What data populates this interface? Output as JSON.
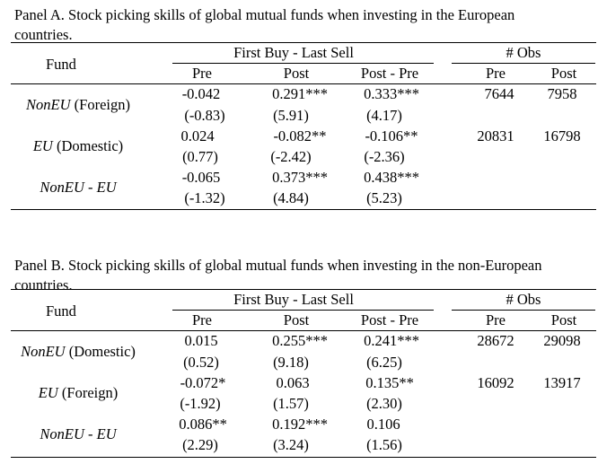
{
  "panels": [
    {
      "title": "Panel A. Stock picking skills of global mutual funds when investing in the European countries.",
      "headers": {
        "fund": "Fund",
        "group1": "First Buy - Last Sell",
        "group2": "# Obs",
        "pre": "Pre",
        "post": "Post",
        "post_pre": "Post - Pre",
        "obs_pre": "Pre",
        "obs_post": "Post"
      },
      "rows": [
        {
          "label_italic": "NonEU",
          "label_rest": " (Foreign)",
          "pre": "-0.042",
          "post": "0.291***",
          "diff": "0.333***",
          "pre_t": "(-0.83)",
          "post_t": "(5.91)",
          "diff_t": "(4.17)",
          "obs_pre": "7644",
          "obs_post": "7958"
        },
        {
          "label_italic": "EU",
          "label_rest": " (Domestic)",
          "pre": "0.024",
          "post": "-0.082**",
          "diff": "-0.106**",
          "pre_t": "(0.77)",
          "post_t": "(-2.42)",
          "diff_t": "(-2.36)",
          "obs_pre": "20831",
          "obs_post": "16798"
        },
        {
          "label_italic": "NonEU - EU",
          "label_rest": "",
          "pre": "-0.065",
          "post": "0.373***",
          "diff": "0.438***",
          "pre_t": "(-1.32)",
          "post_t": "(4.84)",
          "diff_t": "(5.23)",
          "obs_pre": "",
          "obs_post": ""
        }
      ]
    },
    {
      "title": "Panel B. Stock picking skills of global mutual funds when investing in the non-European countries.",
      "headers": {
        "fund": "Fund",
        "group1": "First Buy - Last Sell",
        "group2": "# Obs",
        "pre": "Pre",
        "post": "Post",
        "post_pre": "Post - Pre",
        "obs_pre": "Pre",
        "obs_post": "Post"
      },
      "rows": [
        {
          "label_italic": "NonEU",
          "label_rest": " (Domestic)",
          "pre": "0.015",
          "post": "0.255***",
          "diff": "0.241***",
          "pre_t": "(0.52)",
          "post_t": "(9.18)",
          "diff_t": "(6.25)",
          "obs_pre": "28672",
          "obs_post": "29098"
        },
        {
          "label_italic": "EU",
          "label_rest": " (Foreign)",
          "pre": "-0.072*",
          "post": "0.063",
          "diff": "0.135**",
          "pre_t": "(-1.92)",
          "post_t": "(1.57)",
          "diff_t": "(2.30)",
          "obs_pre": "16092",
          "obs_post": "13917"
        },
        {
          "label_italic": "NonEU - EU",
          "label_rest": "",
          "pre": "0.086**",
          "post": "0.192***",
          "diff": "0.106",
          "pre_t": "(2.29)",
          "post_t": "(3.24)",
          "diff_t": "(1.56)",
          "obs_pre": "",
          "obs_post": ""
        }
      ]
    }
  ]
}
